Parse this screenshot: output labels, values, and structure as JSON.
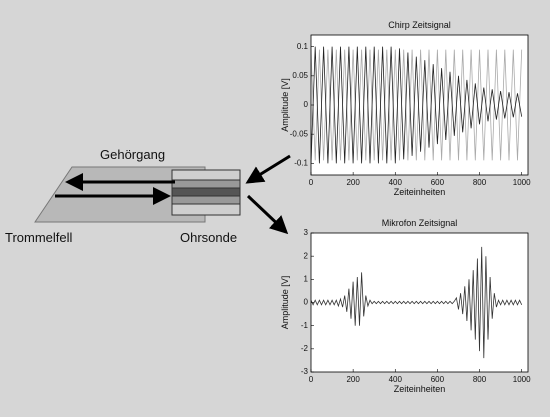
{
  "labels": {
    "ear_canal": "Gehörgang",
    "eardrum": "Trommelfell",
    "probe": "Ohrsonde"
  },
  "chart_data": [
    {
      "type": "line",
      "title": "Chirp Zeitsignal",
      "xlabel": "Zeiteinheiten",
      "ylabel": "Amplitude [V]",
      "x": [
        0,
        20,
        40,
        60,
        80,
        100,
        120,
        140,
        160,
        180,
        200,
        220,
        240,
        260,
        280,
        300,
        320,
        340,
        360,
        380,
        400,
        420,
        440,
        460,
        480,
        500,
        520,
        540,
        560,
        580,
        600,
        620,
        640,
        660,
        680,
        700,
        720,
        740,
        760,
        780,
        800,
        820,
        840,
        860,
        880,
        900,
        920,
        940,
        960,
        980,
        1000
      ],
      "series": [
        {
          "color": "#aaaaaa",
          "values": [
            0.095,
            -0.095,
            0.095,
            -0.095,
            0.095,
            -0.095,
            0.095,
            -0.095,
            0.095,
            -0.095,
            0.095,
            -0.095,
            0.095,
            -0.095,
            0.095,
            -0.095,
            0.095,
            -0.095,
            0.095,
            -0.095,
            0.095,
            -0.095,
            0.095,
            -0.095,
            0.095,
            -0.095,
            0.095,
            -0.095,
            0.095,
            -0.095,
            0.095,
            -0.095,
            0.095,
            -0.095,
            0.095,
            -0.095,
            0.095,
            -0.095,
            0.095,
            -0.095,
            0.095,
            -0.095,
            0.095,
            -0.095,
            0.095,
            -0.095,
            0.095,
            -0.095,
            0.095,
            -0.095,
            0.095
          ]
        },
        {
          "color": "#222222",
          "values": [
            -0.1,
            0.1,
            -0.1,
            0.1,
            -0.1,
            0.1,
            -0.1,
            0.1,
            -0.1,
            0.1,
            -0.1,
            0.1,
            -0.1,
            0.1,
            -0.1,
            0.1,
            -0.1,
            0.1,
            -0.1,
            0.1,
            -0.1,
            0.097,
            -0.093,
            0.09,
            -0.087,
            0.083,
            -0.08,
            0.077,
            -0.073,
            0.07,
            -0.067,
            0.063,
            -0.06,
            0.057,
            -0.053,
            0.05,
            -0.047,
            0.043,
            -0.04,
            0.037,
            -0.033,
            0.03,
            -0.028,
            0.027,
            -0.025,
            0.024,
            -0.023,
            0.022,
            -0.021,
            0.02,
            -0.02
          ]
        }
      ],
      "xlim": [
        0,
        1030
      ],
      "ylim": [
        -0.12,
        0.12
      ],
      "xticks": [
        0,
        200,
        400,
        600,
        800,
        1000
      ],
      "yticks": [
        -0.1,
        -0.05,
        0,
        0.05,
        0.1
      ]
    },
    {
      "type": "line",
      "title": "Mikrofon Zeitsignal",
      "xlabel": "Zeiteinheiten",
      "ylabel": "Amplitude [V]",
      "x": [
        0,
        10,
        20,
        30,
        40,
        50,
        60,
        70,
        80,
        90,
        100,
        110,
        120,
        130,
        140,
        150,
        160,
        170,
        180,
        190,
        200,
        210,
        220,
        230,
        240,
        250,
        260,
        270,
        280,
        290,
        300,
        310,
        320,
        330,
        340,
        350,
        360,
        370,
        380,
        390,
        400,
        410,
        420,
        430,
        440,
        450,
        460,
        470,
        480,
        490,
        500,
        510,
        520,
        530,
        540,
        550,
        560,
        570,
        580,
        590,
        600,
        610,
        620,
        630,
        640,
        650,
        660,
        670,
        680,
        690,
        700,
        710,
        720,
        730,
        740,
        750,
        760,
        770,
        780,
        790,
        800,
        810,
        820,
        830,
        840,
        850,
        860,
        870,
        880,
        890,
        900,
        910,
        920,
        930,
        940,
        950,
        960,
        970,
        980,
        990,
        1000
      ],
      "series": [
        {
          "color": "#333333",
          "values": [
            0.1,
            -0.1,
            0.1,
            -0.1,
            0.1,
            -0.1,
            0.1,
            -0.1,
            0.1,
            -0.1,
            0.1,
            -0.1,
            0.1,
            -0.15,
            0.15,
            -0.2,
            0.3,
            -0.4,
            0.6,
            -0.7,
            0.9,
            -1.0,
            1.1,
            -1.0,
            1.3,
            -0.6,
            0.3,
            -0.15,
            0.1,
            -0.05,
            0.05,
            -0.05,
            0.05,
            -0.05,
            0.05,
            -0.05,
            0.05,
            -0.05,
            0.05,
            -0.05,
            0.05,
            -0.05,
            0.05,
            -0.05,
            0.05,
            -0.05,
            0.05,
            -0.05,
            0.05,
            -0.05,
            0.05,
            -0.05,
            0.05,
            -0.05,
            0.05,
            -0.05,
            0.05,
            -0.05,
            0.05,
            -0.05,
            0.05,
            -0.05,
            0.05,
            -0.05,
            0.05,
            -0.05,
            0.05,
            -0.05,
            0.05,
            0.2,
            -0.3,
            0.4,
            -0.5,
            0.7,
            -0.8,
            1.0,
            -1.2,
            1.4,
            -1.6,
            1.9,
            -2.1,
            2.4,
            -2.4,
            2.0,
            -1.6,
            1.1,
            -0.7,
            0.4,
            -0.2,
            0.1,
            -0.1,
            0.1,
            -0.1,
            0.1,
            -0.1,
            0.1,
            -0.1,
            0.1,
            -0.1,
            0.1,
            -0.1
          ]
        }
      ],
      "xlim": [
        0,
        1030
      ],
      "ylim": [
        -3,
        3
      ],
      "xticks": [
        0,
        200,
        400,
        600,
        800,
        1000
      ],
      "yticks": [
        -3,
        -2,
        -1,
        0,
        1,
        2,
        3
      ]
    }
  ]
}
